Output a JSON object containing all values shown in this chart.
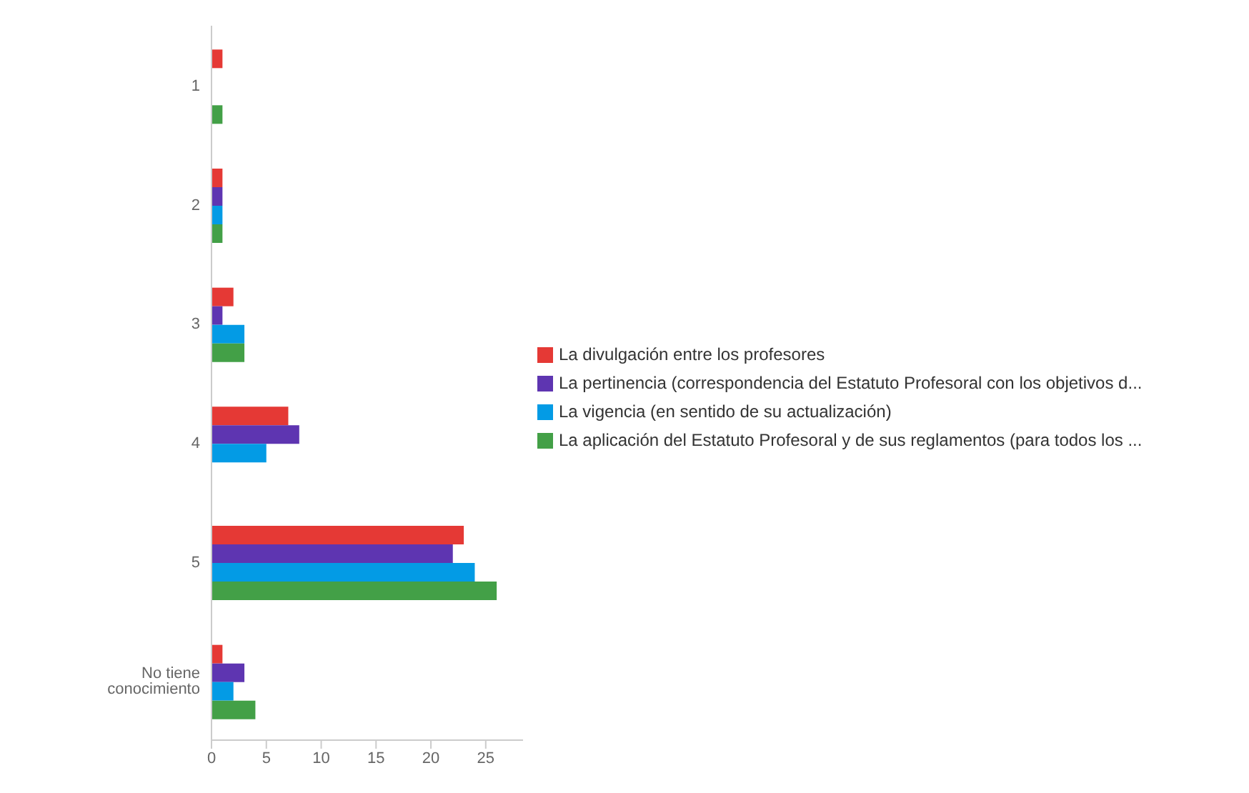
{
  "chart_data": {
    "type": "bar",
    "orientation": "horizontal",
    "categories": [
      "1",
      "2",
      "3",
      "4",
      "5",
      "No tiene conocimiento"
    ],
    "series": [
      {
        "name": "La divulgación entre los profesores",
        "color": "#e53935",
        "values": [
          1,
          1,
          2,
          7,
          23,
          1
        ]
      },
      {
        "name": "La pertinencia (correspondencia del Estatuto Profesoral con los objetivos d...",
        "color": "#5e35b1",
        "values": [
          0,
          1,
          1,
          8,
          22,
          3
        ]
      },
      {
        "name": "La vigencia (en sentido de su actualización)",
        "color": "#039be5",
        "values": [
          0,
          1,
          3,
          5,
          24,
          2
        ]
      },
      {
        "name": "La aplicación del Estatuto Profesoral y de sus reglamentos (para todos los ...",
        "color": "#43a047",
        "values": [
          1,
          1,
          3,
          0,
          26,
          4
        ]
      }
    ],
    "xlim": [
      0,
      28.4
    ],
    "xticks": [
      0,
      5,
      10,
      15,
      20,
      25
    ],
    "grid": false,
    "legend": "right"
  }
}
